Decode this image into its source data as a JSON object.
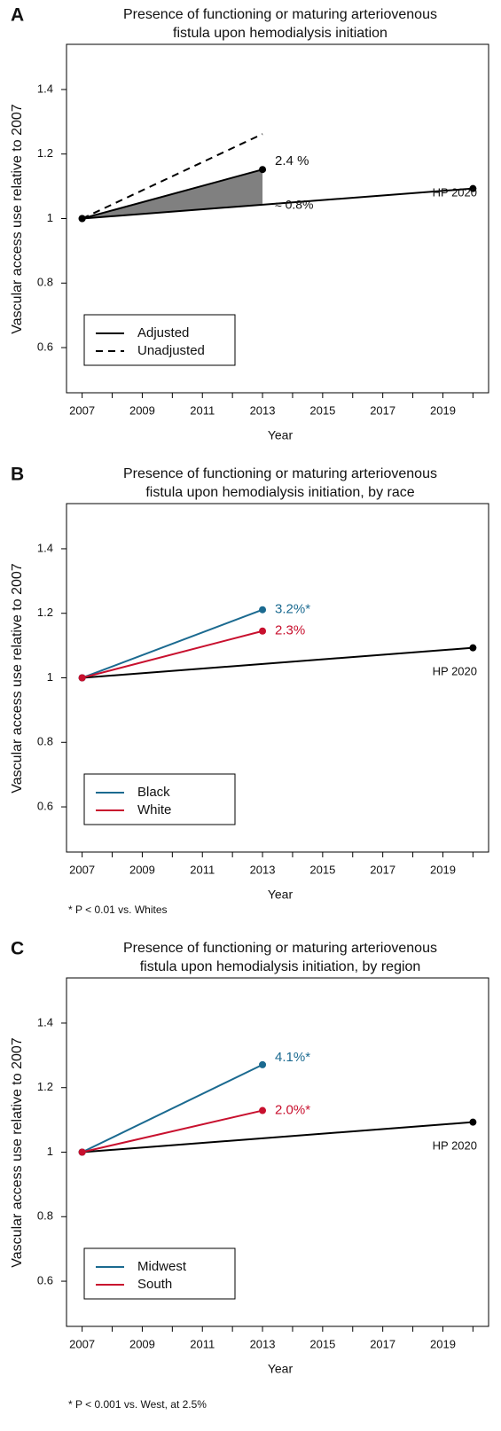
{
  "chart_data": [
    {
      "type": "line",
      "panel": "A",
      "title": [
        "Presence of functioning or maturing arteriovenous",
        "fistula upon hemodialysis initiation"
      ],
      "xlabel": "Year",
      "ylabel": "Vascular access use relative to 2007",
      "xlim": [
        2006.48,
        2020.52
      ],
      "ylim": [
        0.46,
        1.54
      ],
      "xticks": [
        2007,
        2009,
        2011,
        2013,
        2015,
        2017,
        2019
      ],
      "xminor_ticks": [
        2008,
        2010,
        2012,
        2014,
        2016,
        2018,
        2020
      ],
      "yticks": [
        0.6,
        0.8,
        1,
        1.2,
        1.4
      ],
      "shade_between": true,
      "series": [
        {
          "name": "Adjusted",
          "color": "#000000",
          "dash": false,
          "points": true,
          "x": [
            2007,
            2013
          ],
          "values": [
            1,
            1.152
          ],
          "annotation": "2.4 %"
        },
        {
          "name": "Unadjusted",
          "color": "#000000",
          "dash": true,
          "points": false,
          "x": [
            2007,
            2013
          ],
          "values": [
            1,
            1.262
          ]
        }
      ],
      "reference": {
        "label": "HP 2020",
        "x": [
          2007,
          2020
        ],
        "values": [
          1,
          1.093
        ],
        "annotation": "≈ 0.8%"
      }
    },
    {
      "type": "line",
      "panel": "B",
      "title": [
        "Presence of functioning or maturing arteriovenous",
        "fistula upon hemodialysis initiation, by race"
      ],
      "xlabel": "Year",
      "ylabel": "Vascular access use relative to 2007",
      "xlim": [
        2006.48,
        2020.52
      ],
      "ylim": [
        0.46,
        1.54
      ],
      "xticks": [
        2007,
        2009,
        2011,
        2013,
        2015,
        2017,
        2019
      ],
      "xminor_ticks": [
        2008,
        2010,
        2012,
        2014,
        2016,
        2018,
        2020
      ],
      "yticks": [
        0.6,
        0.8,
        1,
        1.2,
        1.4
      ],
      "shade_between": false,
      "series": [
        {
          "name": "Black",
          "color": "#1b6a90",
          "dash": false,
          "points": true,
          "x": [
            2007,
            2013
          ],
          "values": [
            1,
            1.211
          ],
          "annotation": "3.2%*"
        },
        {
          "name": "White",
          "color": "#c8102e",
          "dash": false,
          "points": true,
          "x": [
            2007,
            2013
          ],
          "values": [
            1,
            1.145
          ],
          "annotation": "2.3%"
        }
      ],
      "reference": {
        "label": "HP 2020",
        "x": [
          2007,
          2020
        ],
        "values": [
          1,
          1.093
        ]
      },
      "footnote": "* P < 0.01 vs. Whites"
    },
    {
      "type": "line",
      "panel": "C",
      "title": [
        "Presence of functioning or maturing arteriovenous",
        "fistula upon hemodialysis initiation, by region"
      ],
      "xlabel": "Year",
      "ylabel": "Vascular access use relative to 2007",
      "xlim": [
        2006.48,
        2020.52
      ],
      "ylim": [
        0.46,
        1.54
      ],
      "xticks": [
        2007,
        2009,
        2011,
        2013,
        2015,
        2017,
        2019
      ],
      "xminor_ticks": [
        2008,
        2010,
        2012,
        2014,
        2016,
        2018,
        2020
      ],
      "yticks": [
        0.6,
        0.8,
        1,
        1.2,
        1.4
      ],
      "shade_between": false,
      "series": [
        {
          "name": "Midwest",
          "color": "#1b6a90",
          "dash": false,
          "points": true,
          "x": [
            2007,
            2013
          ],
          "values": [
            1,
            1.271
          ],
          "annotation": "4.1%*"
        },
        {
          "name": "South",
          "color": "#c8102e",
          "dash": false,
          "points": true,
          "x": [
            2007,
            2013
          ],
          "values": [
            1,
            1.129
          ],
          "annotation": "2.0%*"
        }
      ],
      "reference": {
        "label": "HP 2020",
        "x": [
          2007,
          2020
        ],
        "values": [
          1,
          1.093
        ]
      },
      "footnote": "* P < 0.001 vs. West, at 2.5%"
    }
  ]
}
